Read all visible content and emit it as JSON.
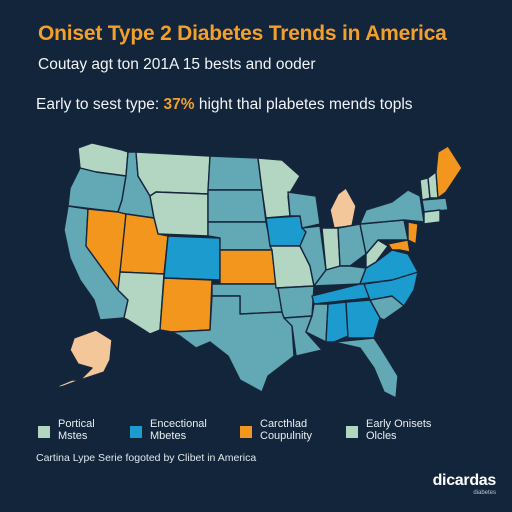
{
  "header": {
    "title": "Oniset Type 2 Diabetes Trends in America",
    "subtitle": "Coutay agt ton 201A 15 bests and ooder",
    "stat_prefix": "Early to sest type: ",
    "stat_highlight": "37%",
    "stat_suffix": " hight thal plabetes mends topls"
  },
  "colors": {
    "background": "#12253b",
    "sage": "#b3d6c2",
    "teal": "#62a8b5",
    "blue": "#1c9bcf",
    "orange": "#f2961e",
    "peach": "#f4c79b",
    "border": "#16273c"
  },
  "legend": [
    {
      "line1": "Portical",
      "line2": "Mstes",
      "color": "#b3d6c2"
    },
    {
      "line1": "Encectional",
      "line2": "Mbetes",
      "color": "#1c9bcf"
    },
    {
      "line1": "Carcthlad",
      "line2": "Coupulnity",
      "color": "#f2961e"
    },
    {
      "line1": "Early Onisets",
      "line2": "Olcles",
      "color": "#b3d6c2"
    }
  ],
  "footer": {
    "text": "Cartina Lype Serie fogoted by Clibet in America"
  },
  "brand": {
    "name": "dicardas",
    "sub": "diabetes"
  }
}
